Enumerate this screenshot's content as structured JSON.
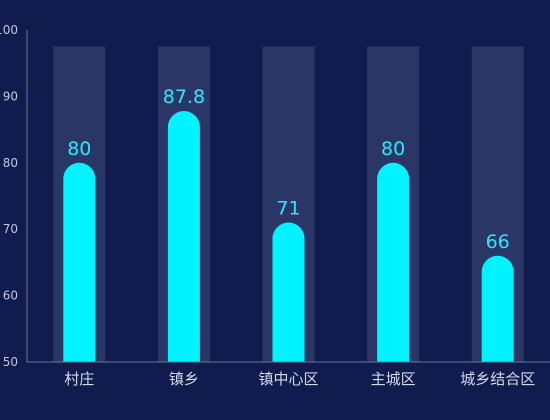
{
  "chart_data": {
    "type": "bar",
    "categories": [
      "村庄",
      "镇乡",
      "镇中心区",
      "主城区",
      "城乡结合区"
    ],
    "values": [
      80,
      87.8,
      71,
      80,
      66
    ],
    "data_labels": [
      "80",
      "87.8",
      "71",
      "80",
      "66"
    ],
    "ylim": [
      50,
      100
    ],
    "yticks": [
      50,
      60,
      70,
      80,
      90,
      100
    ],
    "ytick_labels": [
      "50",
      "60",
      "70",
      "80",
      "90",
      "100"
    ],
    "background_bar_value": 97.5,
    "grid": false,
    "legend": "none",
    "colors": {
      "background": "#0f1c4d",
      "bar": "#00f3ff",
      "track": "#2a3665",
      "data_label": "#2ee6ff",
      "axis": "#6c7598"
    }
  }
}
